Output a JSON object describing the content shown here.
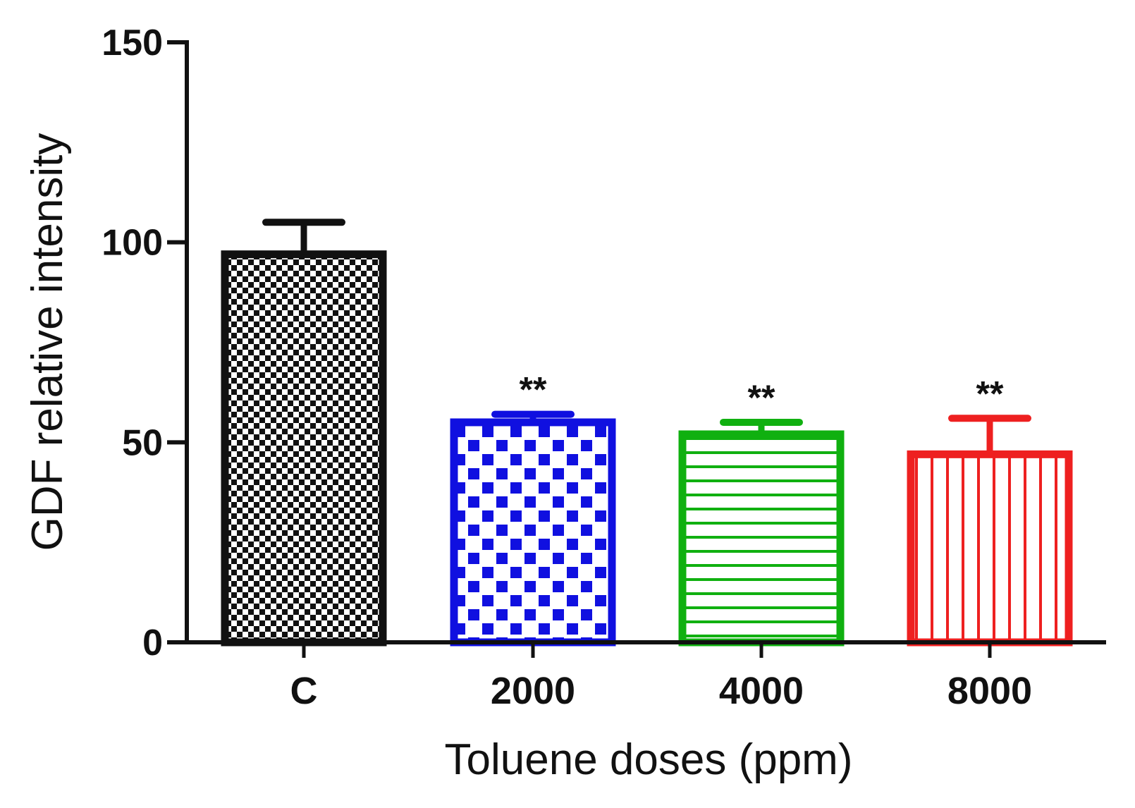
{
  "chart_data": {
    "type": "bar",
    "title": "",
    "xlabel": "Toluene doses (ppm)",
    "ylabel": "GDF relative intensity",
    "categories": [
      "C",
      "2000",
      "4000",
      "8000"
    ],
    "values": [
      97,
      55,
      52,
      47
    ],
    "error_upper": [
      105,
      57,
      55,
      56
    ],
    "annotations": [
      "",
      "**",
      "**",
      "**"
    ],
    "colors": [
      "#111111",
      "#1010e0",
      "#10b010",
      "#ee2020"
    ],
    "patterns": [
      "fine-checker",
      "coarse-checker",
      "horizontal-lines",
      "vertical-lines"
    ],
    "ylim": [
      0,
      150
    ],
    "yticks": [
      0,
      50,
      100,
      150
    ],
    "grid": false,
    "legend": "none"
  }
}
